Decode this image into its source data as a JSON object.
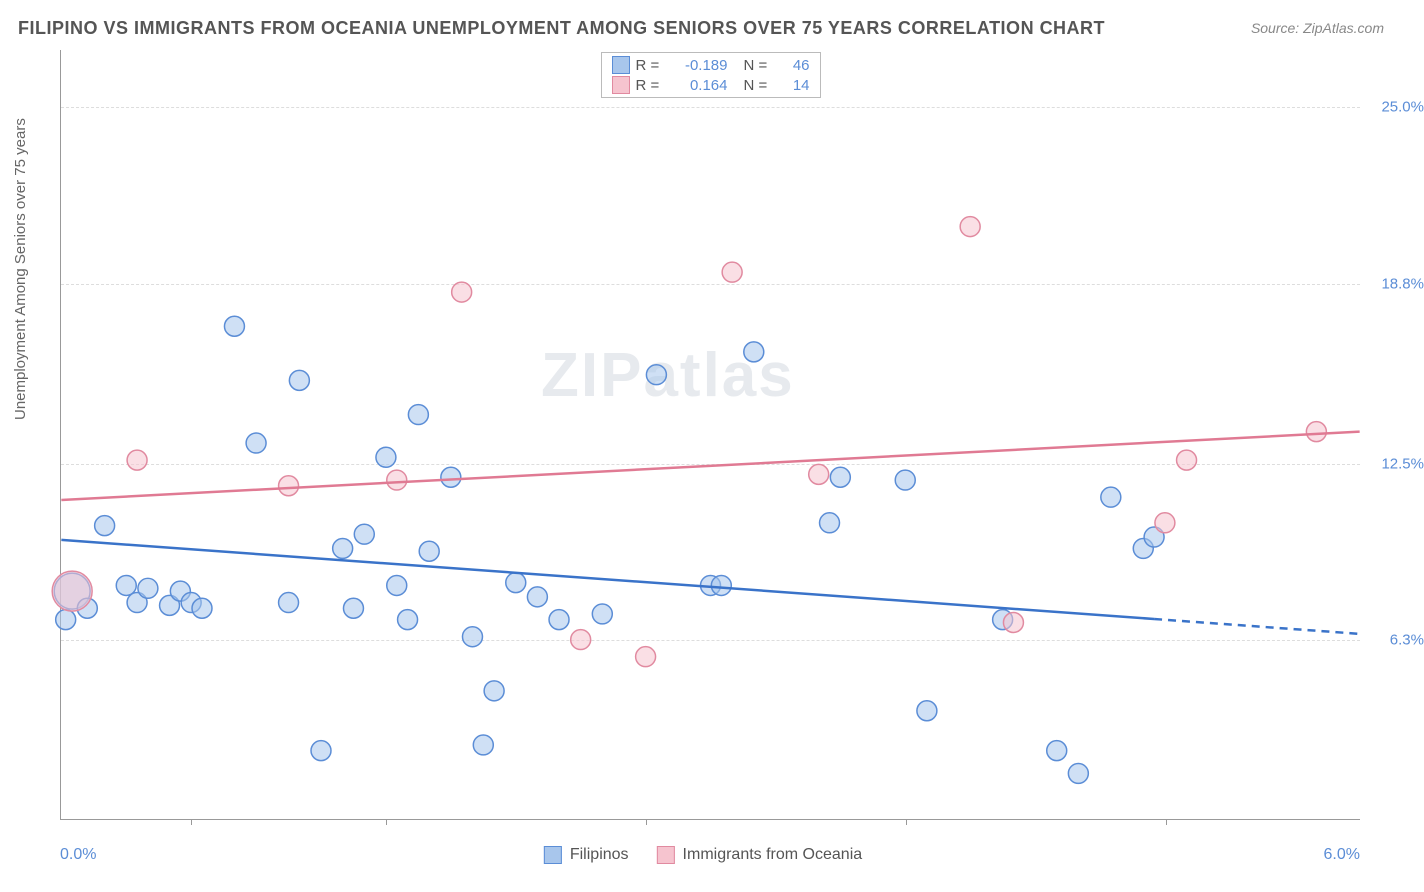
{
  "title": "FILIPINO VS IMMIGRANTS FROM OCEANIA UNEMPLOYMENT AMONG SENIORS OVER 75 YEARS CORRELATION CHART",
  "source": "Source: ZipAtlas.com",
  "watermark": "ZIPatlas",
  "ylabel": "Unemployment Among Seniors over 75 years",
  "x_axis": {
    "min": 0.0,
    "max": 6.0,
    "left_label": "0.0%",
    "right_label": "6.0%",
    "tick_positions": [
      0.1,
      0.25,
      0.45,
      0.65,
      0.85
    ]
  },
  "y_axis": {
    "min": 0.0,
    "max": 27.0,
    "ticks": [
      {
        "v": 25.0,
        "label": "25.0%"
      },
      {
        "v": 18.8,
        "label": "18.8%"
      },
      {
        "v": 12.5,
        "label": "12.5%"
      },
      {
        "v": 6.3,
        "label": "6.3%"
      }
    ]
  },
  "colors": {
    "blue_fill": "#a8c6ec",
    "blue_stroke": "#5b8dd6",
    "pink_fill": "#f6c4cf",
    "pink_stroke": "#e18aa0",
    "blue_line": "#3a73c9",
    "pink_line": "#e07a93",
    "grid": "#dddddd",
    "text": "#666666",
    "title_text": "#555555",
    "tick_text": "#5b8dd6",
    "background": "#ffffff"
  },
  "marker_opacity": 0.55,
  "marker_radius": 10,
  "series": [
    {
      "name": "Filipinos",
      "color_key": "blue",
      "R": "-0.189",
      "N": "46",
      "trend": {
        "y_at_xmin": 9.8,
        "y_at_xmax": 6.5,
        "dash_from_x": 5.05
      },
      "points": [
        {
          "x": 0.02,
          "y": 7.0
        },
        {
          "x": 0.05,
          "y": 8.0,
          "r": 18
        },
        {
          "x": 0.12,
          "y": 7.4
        },
        {
          "x": 0.2,
          "y": 10.3
        },
        {
          "x": 0.3,
          "y": 8.2
        },
        {
          "x": 0.35,
          "y": 7.6
        },
        {
          "x": 0.4,
          "y": 8.1
        },
        {
          "x": 0.5,
          "y": 7.5
        },
        {
          "x": 0.55,
          "y": 8.0
        },
        {
          "x": 0.6,
          "y": 7.6
        },
        {
          "x": 0.65,
          "y": 7.4
        },
        {
          "x": 0.8,
          "y": 17.3
        },
        {
          "x": 0.9,
          "y": 13.2
        },
        {
          "x": 1.05,
          "y": 7.6
        },
        {
          "x": 1.1,
          "y": 15.4
        },
        {
          "x": 1.2,
          "y": 2.4
        },
        {
          "x": 1.3,
          "y": 9.5
        },
        {
          "x": 1.35,
          "y": 7.4
        },
        {
          "x": 1.4,
          "y": 10.0
        },
        {
          "x": 1.5,
          "y": 12.7
        },
        {
          "x": 1.55,
          "y": 8.2
        },
        {
          "x": 1.6,
          "y": 7.0
        },
        {
          "x": 1.65,
          "y": 14.2
        },
        {
          "x": 1.7,
          "y": 9.4
        },
        {
          "x": 1.8,
          "y": 12.0
        },
        {
          "x": 1.9,
          "y": 6.4
        },
        {
          "x": 1.95,
          "y": 2.6
        },
        {
          "x": 2.0,
          "y": 4.5
        },
        {
          "x": 2.1,
          "y": 8.3
        },
        {
          "x": 2.2,
          "y": 7.8
        },
        {
          "x": 2.3,
          "y": 7.0
        },
        {
          "x": 2.5,
          "y": 7.2
        },
        {
          "x": 2.75,
          "y": 15.6
        },
        {
          "x": 3.0,
          "y": 8.2
        },
        {
          "x": 3.05,
          "y": 8.2
        },
        {
          "x": 3.2,
          "y": 16.4
        },
        {
          "x": 3.55,
          "y": 10.4
        },
        {
          "x": 3.6,
          "y": 12.0
        },
        {
          "x": 3.9,
          "y": 11.9
        },
        {
          "x": 4.0,
          "y": 3.8
        },
        {
          "x": 4.35,
          "y": 7.0
        },
        {
          "x": 4.6,
          "y": 2.4
        },
        {
          "x": 4.7,
          "y": 1.6
        },
        {
          "x": 4.85,
          "y": 11.3
        },
        {
          "x": 5.0,
          "y": 9.5
        },
        {
          "x": 5.05,
          "y": 9.9
        }
      ]
    },
    {
      "name": "Immigrants from Oceania",
      "color_key": "pink",
      "R": "0.164",
      "N": "14",
      "trend": {
        "y_at_xmin": 11.2,
        "y_at_xmax": 13.6
      },
      "points": [
        {
          "x": 0.05,
          "y": 8.0,
          "r": 20
        },
        {
          "x": 0.35,
          "y": 12.6
        },
        {
          "x": 1.05,
          "y": 11.7
        },
        {
          "x": 1.55,
          "y": 11.9
        },
        {
          "x": 1.85,
          "y": 18.5
        },
        {
          "x": 2.4,
          "y": 6.3
        },
        {
          "x": 2.7,
          "y": 5.7
        },
        {
          "x": 3.1,
          "y": 19.2
        },
        {
          "x": 3.5,
          "y": 12.1
        },
        {
          "x": 4.2,
          "y": 20.8
        },
        {
          "x": 4.4,
          "y": 6.9
        },
        {
          "x": 5.1,
          "y": 10.4
        },
        {
          "x": 5.2,
          "y": 12.6
        },
        {
          "x": 5.8,
          "y": 13.6
        }
      ]
    }
  ],
  "legend_bottom": [
    {
      "label": "Filipinos",
      "color_key": "blue"
    },
    {
      "label": "Immigrants from Oceania",
      "color_key": "pink"
    }
  ]
}
